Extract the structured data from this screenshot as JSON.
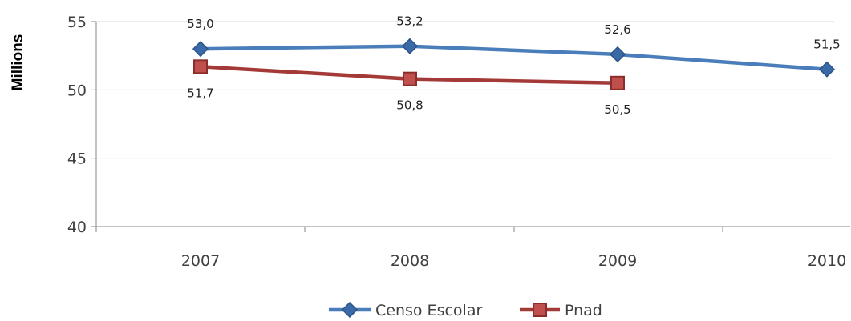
{
  "chart_data": {
    "type": "line",
    "title": "",
    "xlabel": "",
    "ylabel": "Millions",
    "categories": [
      "2007",
      "2008",
      "2009",
      "2010"
    ],
    "ylim": [
      40,
      55
    ],
    "yticks": [
      "40",
      "45",
      "50",
      "55"
    ],
    "grid": true,
    "legend_position": "bottom",
    "series": [
      {
        "name": "Censo Escolar",
        "color": "#4a7ebb",
        "marker_color": "#3b6aa8",
        "marker": "diamond",
        "values": [
          53.0,
          53.2,
          52.6,
          51.5
        ],
        "labels": [
          "53,0",
          "53,2",
          "52,6",
          "51,5"
        ]
      },
      {
        "name": "Pnad",
        "color": "#a33a38",
        "marker_color": "#c0504d",
        "marker": "square",
        "values": [
          51.7,
          50.8,
          50.5,
          null
        ],
        "labels": [
          "51,7",
          "50,8",
          "50,5",
          null
        ]
      }
    ]
  }
}
